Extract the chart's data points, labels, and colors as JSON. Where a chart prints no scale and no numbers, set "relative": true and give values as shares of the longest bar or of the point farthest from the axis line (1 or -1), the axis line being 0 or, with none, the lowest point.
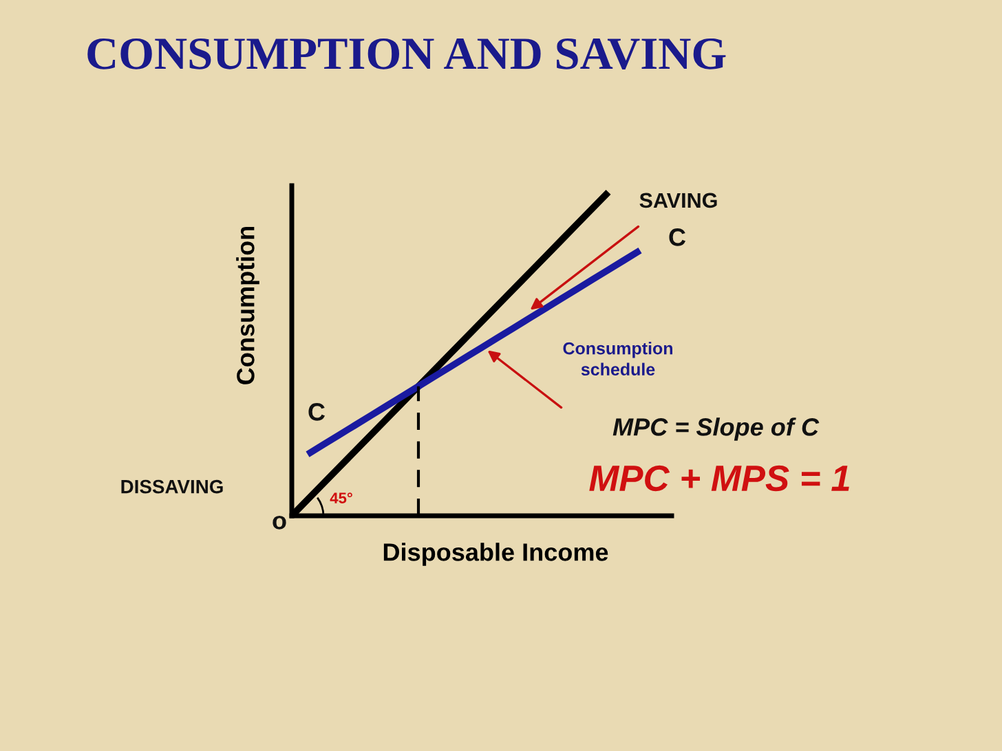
{
  "chart_data": {
    "type": "line",
    "title": "CONSUMPTION AND SAVING",
    "xlabel": "Disposable Income",
    "ylabel": "Consumption",
    "relative": true,
    "marker": "none",
    "categories": [
      null,
      null,
      null,
      null,
      null,
      null,
      null,
      null,
      null,
      null,
      null,
      null,
      null,
      null,
      null,
      null,
      null,
      null,
      null,
      null,
      null,
      null,
      null,
      null,
      null
    ],
    "series": [
      {
        "color": "#000000",
        "values": [
          0,
          0.05,
          0.1,
          0.15,
          0.2,
          0.25,
          0.3,
          0.35,
          0.4,
          0.45,
          0.5,
          0.55,
          0.6,
          0.65,
          0.7,
          0.75,
          0.8,
          0.85,
          0.9,
          0.95,
          1,
          null,
          null,
          null,
          null
        ]
      },
      {
        "color": "#1a1aa0",
        "values": [
          null,
          0.19,
          0.22,
          0.25,
          0.28,
          0.31,
          0.34,
          0.37,
          0.4,
          0.43,
          0.46,
          0.49,
          0.52,
          0.55,
          0.58,
          0.61,
          0.64,
          0.67,
          0.7,
          0.73,
          0.76,
          0.79,
          0.82,
          null,
          null
        ]
      }
    ],
    "annotations": [
      "SAVING",
      "C",
      "Consumption\nschedule",
      "C",
      "MPC = Slope of C",
      "DISSAVING",
      "MPC + MPS = 1",
      "o",
      "45°"
    ]
  }
}
